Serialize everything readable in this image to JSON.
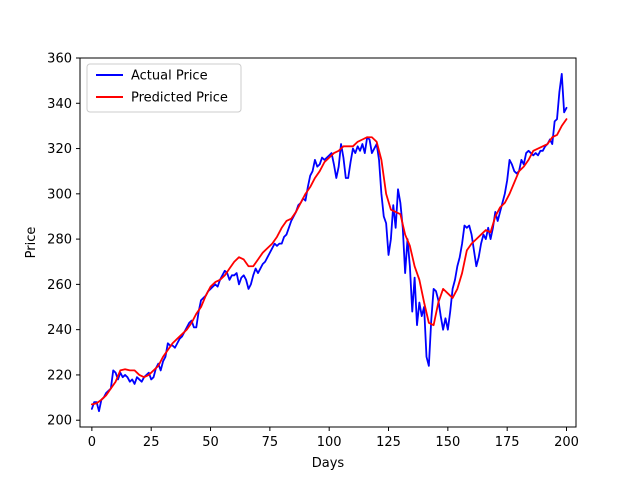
{
  "chart_data": {
    "type": "line",
    "xlabel": "Days",
    "ylabel": "Price",
    "xlim": [
      -5,
      204
    ],
    "ylim": [
      197,
      360
    ],
    "xticks": [
      0,
      25,
      50,
      75,
      100,
      125,
      150,
      175,
      200
    ],
    "yticks": [
      200,
      220,
      240,
      260,
      280,
      300,
      320,
      340,
      360
    ],
    "grid": false,
    "legend_position": "upper-left",
    "series": [
      {
        "name": "Actual Price",
        "color": "#0000ff",
        "points": [
          [
            0,
            205
          ],
          [
            1,
            208
          ],
          [
            2,
            208
          ],
          [
            3,
            204
          ],
          [
            4,
            209
          ],
          [
            5,
            210
          ],
          [
            6,
            212
          ],
          [
            7,
            213
          ],
          [
            8,
            214
          ],
          [
            9,
            222
          ],
          [
            10,
            221
          ],
          [
            11,
            218
          ],
          [
            12,
            221
          ],
          [
            13,
            219
          ],
          [
            14,
            220
          ],
          [
            15,
            219
          ],
          [
            16,
            217
          ],
          [
            17,
            218
          ],
          [
            18,
            216
          ],
          [
            19,
            219
          ],
          [
            20,
            218
          ],
          [
            21,
            217
          ],
          [
            22,
            219
          ],
          [
            23,
            220
          ],
          [
            24,
            221
          ],
          [
            25,
            218
          ],
          [
            26,
            219
          ],
          [
            27,
            223
          ],
          [
            28,
            225
          ],
          [
            29,
            222
          ],
          [
            30,
            226
          ],
          [
            31,
            228
          ],
          [
            32,
            234
          ],
          [
            33,
            233
          ],
          [
            34,
            233
          ],
          [
            35,
            232
          ],
          [
            36,
            234
          ],
          [
            37,
            236
          ],
          [
            38,
            237
          ],
          [
            39,
            239
          ],
          [
            40,
            241
          ],
          [
            41,
            243
          ],
          [
            42,
            244
          ],
          [
            43,
            241
          ],
          [
            44,
            241
          ],
          [
            45,
            248
          ],
          [
            46,
            253
          ],
          [
            47,
            254
          ],
          [
            48,
            255
          ],
          [
            49,
            257
          ],
          [
            50,
            258
          ],
          [
            51,
            259
          ],
          [
            52,
            260
          ],
          [
            53,
            259
          ],
          [
            54,
            262
          ],
          [
            55,
            264
          ],
          [
            56,
            266
          ],
          [
            57,
            265
          ],
          [
            58,
            262
          ],
          [
            59,
            264
          ],
          [
            60,
            264
          ],
          [
            61,
            265
          ],
          [
            62,
            260
          ],
          [
            63,
            263
          ],
          [
            64,
            264
          ],
          [
            65,
            262
          ],
          [
            66,
            258
          ],
          [
            67,
            260
          ],
          [
            68,
            264
          ],
          [
            69,
            267
          ],
          [
            70,
            265
          ],
          [
            71,
            267
          ],
          [
            72,
            269
          ],
          [
            73,
            270
          ],
          [
            74,
            272
          ],
          [
            75,
            274
          ],
          [
            76,
            276
          ],
          [
            77,
            278
          ],
          [
            78,
            277
          ],
          [
            79,
            278
          ],
          [
            80,
            278
          ],
          [
            81,
            281
          ],
          [
            82,
            282
          ],
          [
            83,
            285
          ],
          [
            84,
            288
          ],
          [
            85,
            290
          ],
          [
            86,
            292
          ],
          [
            87,
            295
          ],
          [
            88,
            296
          ],
          [
            89,
            298
          ],
          [
            90,
            297
          ],
          [
            91,
            303
          ],
          [
            92,
            308
          ],
          [
            93,
            310
          ],
          [
            94,
            315
          ],
          [
            95,
            312
          ],
          [
            96,
            313
          ],
          [
            97,
            316
          ],
          [
            98,
            315
          ],
          [
            99,
            316
          ],
          [
            100,
            317
          ],
          [
            101,
            318
          ],
          [
            102,
            313
          ],
          [
            103,
            307
          ],
          [
            104,
            312
          ],
          [
            105,
            322
          ],
          [
            106,
            316
          ],
          [
            107,
            307
          ],
          [
            108,
            307
          ],
          [
            109,
            314
          ],
          [
            110,
            320
          ],
          [
            111,
            318
          ],
          [
            112,
            321
          ],
          [
            113,
            319
          ],
          [
            114,
            322
          ],
          [
            115,
            318
          ],
          [
            116,
            325
          ],
          [
            117,
            324
          ],
          [
            118,
            318
          ],
          [
            119,
            320
          ],
          [
            120,
            322
          ],
          [
            121,
            315
          ],
          [
            122,
            300
          ],
          [
            123,
            290
          ],
          [
            124,
            287
          ],
          [
            125,
            273
          ],
          [
            126,
            280
          ],
          [
            127,
            295
          ],
          [
            128,
            285
          ],
          [
            129,
            302
          ],
          [
            130,
            296
          ],
          [
            131,
            285
          ],
          [
            132,
            265
          ],
          [
            133,
            280
          ],
          [
            134,
            268
          ],
          [
            135,
            248
          ],
          [
            136,
            263
          ],
          [
            137,
            242
          ],
          [
            138,
            252
          ],
          [
            139,
            246
          ],
          [
            140,
            250
          ],
          [
            141,
            228
          ],
          [
            142,
            224
          ],
          [
            143,
            244
          ],
          [
            144,
            258
          ],
          [
            145,
            257
          ],
          [
            146,
            253
          ],
          [
            147,
            246
          ],
          [
            148,
            240
          ],
          [
            149,
            245
          ],
          [
            150,
            240
          ],
          [
            151,
            248
          ],
          [
            152,
            258
          ],
          [
            153,
            262
          ],
          [
            154,
            268
          ],
          [
            155,
            272
          ],
          [
            156,
            278
          ],
          [
            157,
            286
          ],
          [
            158,
            285
          ],
          [
            159,
            286
          ],
          [
            160,
            282
          ],
          [
            161,
            275
          ],
          [
            162,
            268
          ],
          [
            163,
            272
          ],
          [
            164,
            278
          ],
          [
            165,
            282
          ],
          [
            166,
            280
          ],
          [
            167,
            285
          ],
          [
            168,
            280
          ],
          [
            169,
            285
          ],
          [
            170,
            292
          ],
          [
            171,
            288
          ],
          [
            172,
            292
          ],
          [
            173,
            296
          ],
          [
            174,
            300
          ],
          [
            175,
            306
          ],
          [
            176,
            315
          ],
          [
            177,
            313
          ],
          [
            178,
            310
          ],
          [
            179,
            309
          ],
          [
            180,
            310
          ],
          [
            181,
            315
          ],
          [
            182,
            313
          ],
          [
            183,
            318
          ],
          [
            184,
            319
          ],
          [
            185,
            318
          ],
          [
            186,
            317
          ],
          [
            187,
            318
          ],
          [
            188,
            317
          ],
          [
            189,
            319
          ],
          [
            190,
            319
          ],
          [
            191,
            321
          ],
          [
            192,
            322
          ],
          [
            193,
            324
          ],
          [
            194,
            322
          ],
          [
            195,
            332
          ],
          [
            196,
            333
          ],
          [
            197,
            345
          ],
          [
            198,
            353
          ],
          [
            199,
            336
          ],
          [
            200,
            338
          ]
        ]
      },
      {
        "name": "Predicted Price",
        "color": "#ff0000",
        "points": [
          [
            0,
            207
          ],
          [
            2,
            207.5
          ],
          [
            4,
            209
          ],
          [
            6,
            211
          ],
          [
            8,
            214
          ],
          [
            10,
            217
          ],
          [
            12,
            222
          ],
          [
            14,
            222.5
          ],
          [
            16,
            222
          ],
          [
            18,
            222
          ],
          [
            20,
            220
          ],
          [
            22,
            219
          ],
          [
            24,
            220
          ],
          [
            26,
            222
          ],
          [
            28,
            224
          ],
          [
            30,
            228
          ],
          [
            32,
            231
          ],
          [
            34,
            234
          ],
          [
            36,
            236
          ],
          [
            38,
            238
          ],
          [
            40,
            240
          ],
          [
            42,
            243
          ],
          [
            44,
            247
          ],
          [
            46,
            250
          ],
          [
            48,
            255
          ],
          [
            50,
            259
          ],
          [
            52,
            261
          ],
          [
            54,
            262
          ],
          [
            56,
            264
          ],
          [
            58,
            267
          ],
          [
            60,
            270
          ],
          [
            62,
            272
          ],
          [
            64,
            271
          ],
          [
            66,
            268
          ],
          [
            68,
            268
          ],
          [
            70,
            271
          ],
          [
            72,
            274
          ],
          [
            74,
            276
          ],
          [
            76,
            278
          ],
          [
            78,
            281
          ],
          [
            80,
            285
          ],
          [
            82,
            288
          ],
          [
            84,
            289
          ],
          [
            86,
            292
          ],
          [
            88,
            296
          ],
          [
            90,
            300
          ],
          [
            92,
            303
          ],
          [
            94,
            307
          ],
          [
            96,
            310
          ],
          [
            98,
            314
          ],
          [
            100,
            316
          ],
          [
            102,
            318
          ],
          [
            104,
            319
          ],
          [
            106,
            321
          ],
          [
            108,
            321
          ],
          [
            110,
            321
          ],
          [
            112,
            323
          ],
          [
            114,
            324
          ],
          [
            116,
            325
          ],
          [
            118,
            325
          ],
          [
            120,
            323
          ],
          [
            122,
            315
          ],
          [
            124,
            300
          ],
          [
            126,
            293
          ],
          [
            128,
            292
          ],
          [
            130,
            291
          ],
          [
            132,
            282
          ],
          [
            134,
            277
          ],
          [
            136,
            268
          ],
          [
            138,
            262
          ],
          [
            140,
            252
          ],
          [
            142,
            243
          ],
          [
            144,
            242
          ],
          [
            146,
            252
          ],
          [
            148,
            258
          ],
          [
            150,
            256
          ],
          [
            152,
            254
          ],
          [
            154,
            258
          ],
          [
            156,
            265
          ],
          [
            158,
            275
          ],
          [
            160,
            278
          ],
          [
            162,
            280
          ],
          [
            164,
            282
          ],
          [
            166,
            284
          ],
          [
            168,
            283
          ],
          [
            170,
            290
          ],
          [
            172,
            294
          ],
          [
            174,
            296
          ],
          [
            176,
            300
          ],
          [
            178,
            305
          ],
          [
            180,
            310
          ],
          [
            182,
            312
          ],
          [
            184,
            315
          ],
          [
            186,
            319
          ],
          [
            188,
            320
          ],
          [
            190,
            321
          ],
          [
            192,
            322
          ],
          [
            194,
            325
          ],
          [
            196,
            326
          ],
          [
            198,
            330
          ],
          [
            200,
            333
          ]
        ]
      }
    ]
  }
}
